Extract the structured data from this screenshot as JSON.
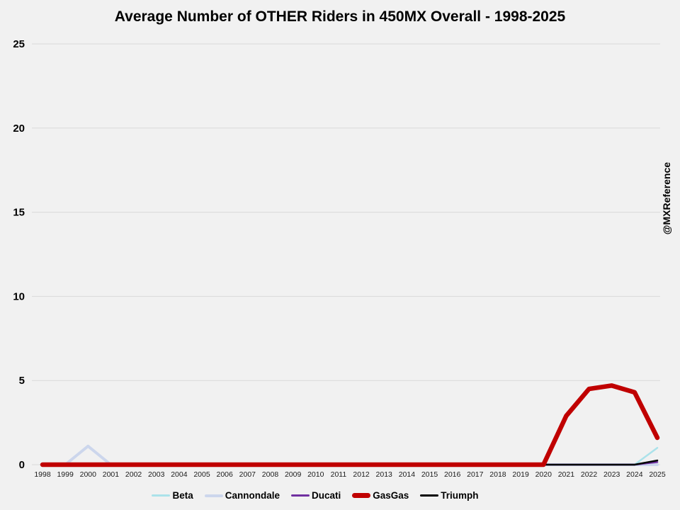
{
  "page": {
    "watermark": "@MXReference",
    "background_color": "#f1f1f1"
  },
  "chart_data": {
    "type": "line",
    "title": "Average Number of OTHER Riders in 450MX Overall - 1998-2025",
    "xlabel": "",
    "ylabel": "",
    "x": [
      "1998",
      "1999",
      "2000",
      "2001",
      "2002",
      "2003",
      "2004",
      "2005",
      "2006",
      "2007",
      "2008",
      "2009",
      "2010",
      "2011",
      "2012",
      "2013",
      "2014",
      "2015",
      "2016",
      "2017",
      "2018",
      "2019",
      "2020",
      "2021",
      "2022",
      "2023",
      "2024",
      "2025"
    ],
    "ylim": [
      0,
      25
    ],
    "yticks": [
      0,
      5,
      10,
      15,
      20,
      25
    ],
    "grid": "horizontal-only",
    "gridline_color": "#d9d9d9",
    "legend_position": "bottom-center",
    "draw_order": [
      "Cannondale",
      "Beta",
      "Ducati",
      "Triumph",
      "GasGas"
    ],
    "series": [
      {
        "name": "Beta",
        "color": "#abe2ea",
        "line_width": 2.5,
        "values": [
          0,
          0,
          0,
          0,
          0,
          0,
          0,
          0,
          0,
          0,
          0,
          0,
          0,
          0,
          0,
          0,
          0,
          0,
          0,
          0,
          0,
          0,
          0,
          0,
          0,
          0,
          0,
          1
        ]
      },
      {
        "name": "Cannondale",
        "color": "#ccd6ec",
        "line_width": 4,
        "values": [
          0,
          0,
          1.1,
          0,
          0,
          0,
          0,
          0,
          0,
          0,
          0,
          0,
          0,
          0,
          0,
          0,
          0,
          0,
          0,
          0,
          0,
          0,
          0,
          0,
          0,
          0,
          0,
          0
        ]
      },
      {
        "name": "Ducati",
        "color": "#7030a0",
        "line_width": 2.5,
        "values": [
          0,
          0,
          0,
          0,
          0,
          0,
          0,
          0,
          0,
          0,
          0,
          0,
          0,
          0,
          0,
          0,
          0,
          0,
          0,
          0,
          0,
          0,
          0,
          0,
          0,
          0,
          0,
          0.15
        ]
      },
      {
        "name": "GasGas",
        "color": "#c00000",
        "line_width": 6.5,
        "values": [
          0,
          0,
          0,
          0,
          0,
          0,
          0,
          0,
          0,
          0,
          0,
          0,
          0,
          0,
          0,
          0,
          0,
          0,
          0,
          0,
          0,
          0,
          0,
          2.9,
          4.5,
          4.7,
          4.3,
          1.6
        ]
      },
      {
        "name": "Triumph",
        "color": "#000000",
        "line_width": 2.5,
        "values": [
          0,
          0,
          0,
          0,
          0,
          0,
          0,
          0,
          0,
          0,
          0,
          0,
          0,
          0,
          0,
          0,
          0,
          0,
          0,
          0,
          0,
          0,
          0,
          0,
          0,
          0,
          0,
          0.25
        ]
      }
    ]
  }
}
